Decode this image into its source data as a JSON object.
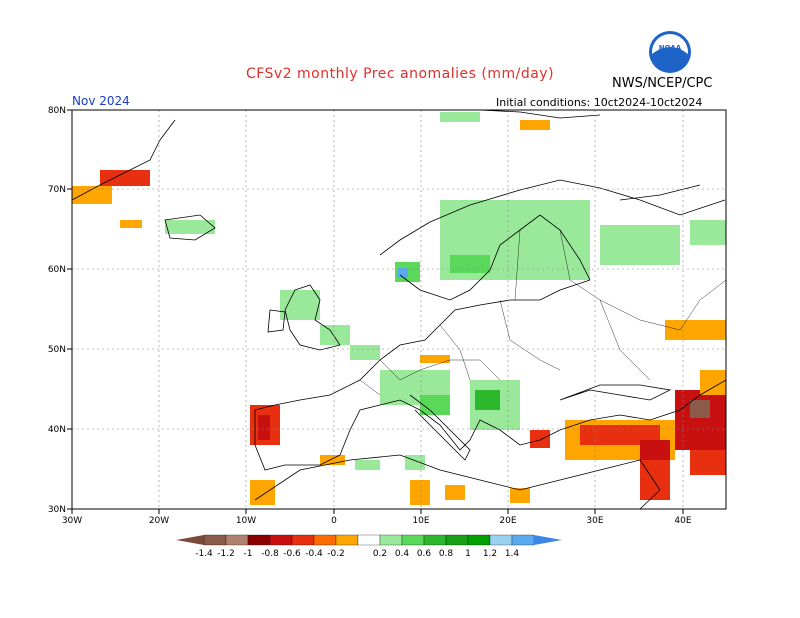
{
  "title": "CFSv2 monthly Prec anomalies (mm/day)",
  "agency": "NWS/NCEP/CPC",
  "logo_text": "NOAA",
  "month_label": "Nov 2024",
  "initial_conditions": "Initial conditions: 10ct2024-10ct2024",
  "map": {
    "lon_range": [
      -30,
      45
    ],
    "lat_range": [
      30,
      80
    ],
    "lon_ticks": [
      "30W",
      "20W",
      "10W",
      "0",
      "10E",
      "20E",
      "30E",
      "40E"
    ],
    "lat_ticks": [
      "30N",
      "40N",
      "50N",
      "60N",
      "70N",
      "80N"
    ]
  },
  "colorbar": {
    "labels": [
      "-1.4",
      "-1.2",
      "-1",
      "-0.8",
      "-0.6",
      "-0.4",
      "-0.2",
      "0.2",
      "0.4",
      "0.6",
      "0.8",
      "1",
      "1.2",
      "1.4"
    ],
    "colors": [
      "#7a4a3a",
      "#8c5a4a",
      "#b08070",
      "#8c0000",
      "#c81010",
      "#e83010",
      "#ff6a00",
      "#ffa500",
      "#ffffff",
      "#9ae89a",
      "#5ad85a",
      "#2cb82c",
      "#16a016",
      "#00a000",
      "#9ad0f0",
      "#5aaaf0",
      "#3c86e8"
    ]
  },
  "colors": {
    "title": "#e0302a",
    "month_label": "#1a3cc8",
    "dry_strong": "#c81010",
    "dry": "#ffa500",
    "wet": "#9ae89a",
    "wet_strong": "#5ad85a"
  }
}
